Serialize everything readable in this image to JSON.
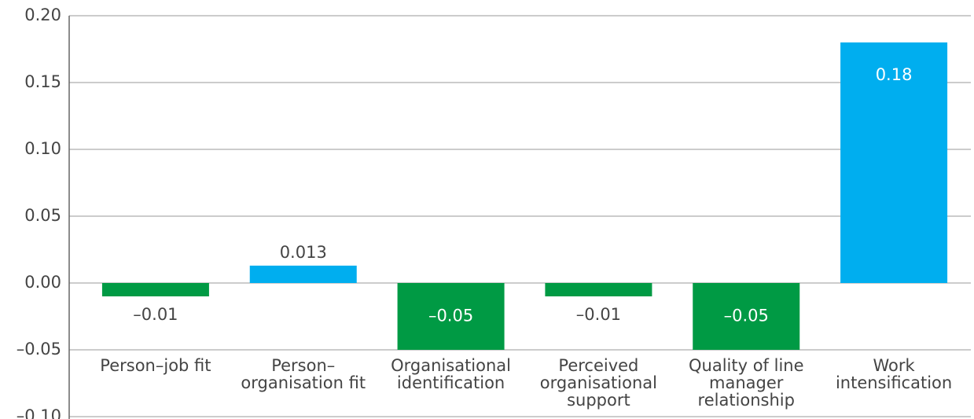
{
  "chart_data": {
    "type": "bar",
    "categories": [
      "Person–job fit",
      "Person–organisation fit",
      "Organisational identification",
      "Perceived organisational support",
      "Quality of line manager relationship",
      "Work intensification"
    ],
    "values": [
      -0.01,
      0.013,
      -0.05,
      -0.01,
      -0.05,
      0.18
    ],
    "value_labels": [
      "–0.01",
      "0.013",
      "–0.05",
      "–0.01",
      "–0.05",
      "0.18"
    ],
    "colors": [
      "#009a44",
      "#00aeef",
      "#009a44",
      "#009a44",
      "#009a44",
      "#00aeef"
    ],
    "ylim": [
      -0.1,
      0.2
    ],
    "yticks": [
      {
        "value": 0.2,
        "label": "0.20"
      },
      {
        "value": 0.15,
        "label": "0.15"
      },
      {
        "value": 0.1,
        "label": "0.10"
      },
      {
        "value": 0.05,
        "label": "0.05"
      },
      {
        "value": 0,
        "label": "0.00"
      },
      {
        "value": -0.05,
        "label": "–0.05"
      },
      {
        "value": -0.1,
        "label": "–0.10"
      }
    ],
    "grid": true
  }
}
